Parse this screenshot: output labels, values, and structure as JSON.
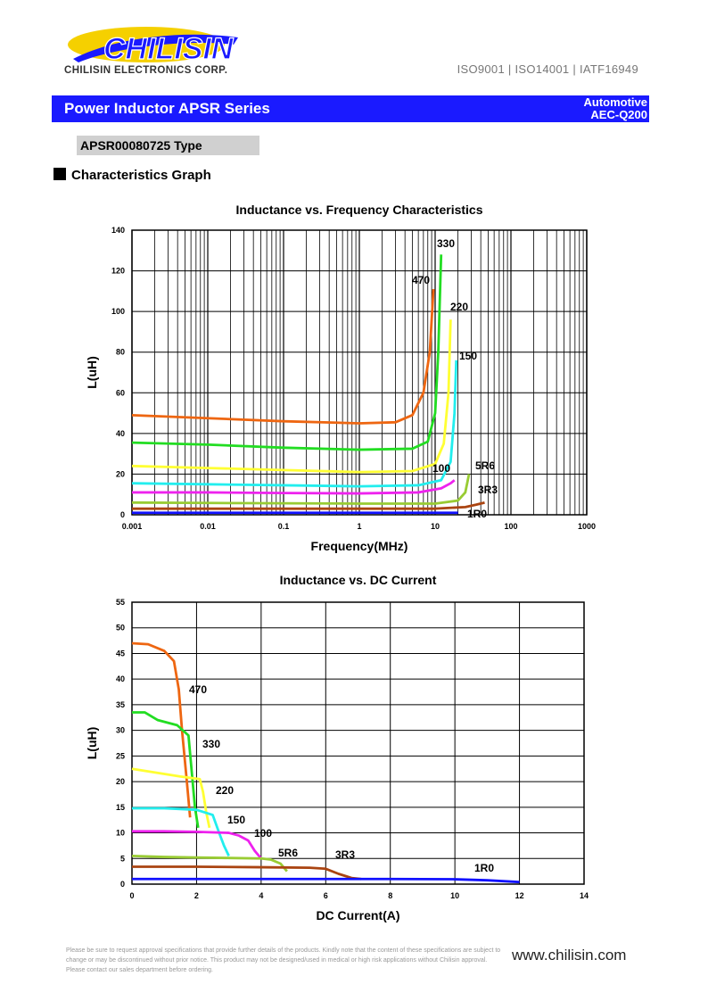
{
  "header": {
    "logo_text": "CHILISIN",
    "company": "CHILISIN ELECTRONICS CORP.",
    "certs": "ISO9001 | ISO14001 | IATF16949"
  },
  "title_bar": {
    "title": "Power Inductor  APSR Series",
    "badge_line1": "Automotive",
    "badge_line2": "AEC-Q200"
  },
  "type_label": "APSR00080725 Type",
  "section_heading": "Characteristics Graph",
  "footer": {
    "note": "Please be sure to request approval specifications that provide further details of the products. Kindly note that the content of these specifications are subject to change or may be discontinued without prior notice. This product may not be designed/used in medical or high risk applications without Chilisin approval. Please contact our sales department before ordering.",
    "website": "www.chilisin.com"
  },
  "colors": {
    "470": "#ee6611",
    "330": "#22dd22",
    "220": "#ffff33",
    "150": "#22eeee",
    "100": "#ee22ee",
    "5R6": "#99cc33",
    "3R3": "#aa4411",
    "1R0": "#1111ff",
    "title_bar": "#1a1aff"
  },
  "chart_data": [
    {
      "type": "line",
      "title": "Inductance  vs. Frequency Characteristics",
      "xlabel": "Frequency(MHz)",
      "ylabel": "L(uH)",
      "xscale": "log",
      "xlim": [
        0.001,
        1000
      ],
      "ylim": [
        0,
        140
      ],
      "x_ticks": [
        "0.001",
        "0.01",
        "0.1",
        "1",
        "10",
        "100",
        "1000"
      ],
      "y_ticks": [
        "0",
        "20",
        "40",
        "60",
        "80",
        "100",
        "120",
        "140"
      ],
      "grid": true,
      "series": [
        {
          "name": "470",
          "points": [
            [
              0.001,
              49
            ],
            [
              0.01,
              47.5
            ],
            [
              0.1,
              46
            ],
            [
              1,
              45
            ],
            [
              3,
              45.5
            ],
            [
              5,
              49
            ],
            [
              7,
              60
            ],
            [
              8.5,
              80
            ],
            [
              9.5,
              111
            ]
          ]
        },
        {
          "name": "330",
          "points": [
            [
              0.001,
              35.5
            ],
            [
              0.01,
              34.5
            ],
            [
              0.1,
              33
            ],
            [
              1,
              32
            ],
            [
              5,
              32.5
            ],
            [
              8,
              36
            ],
            [
              10,
              50
            ],
            [
              11,
              80
            ],
            [
              12,
              128
            ]
          ]
        },
        {
          "name": "220",
          "points": [
            [
              0.001,
              24
            ],
            [
              0.01,
              23
            ],
            [
              0.1,
              22
            ],
            [
              1,
              21
            ],
            [
              5,
              21.5
            ],
            [
              10,
              25
            ],
            [
              13,
              35
            ],
            [
              15,
              60
            ],
            [
              16,
              96
            ]
          ]
        },
        {
          "name": "150",
          "points": [
            [
              0.001,
              15.5
            ],
            [
              0.01,
              15
            ],
            [
              0.1,
              14.5
            ],
            [
              1,
              14
            ],
            [
              6,
              14.5
            ],
            [
              12,
              17
            ],
            [
              16,
              26
            ],
            [
              18,
              50
            ],
            [
              19,
              76
            ]
          ]
        },
        {
          "name": "100",
          "points": [
            [
              0.001,
              11
            ],
            [
              0.01,
              11
            ],
            [
              0.1,
              10.7
            ],
            [
              1,
              10.5
            ],
            [
              6,
              11
            ],
            [
              12,
              13
            ],
            [
              16,
              15.5
            ],
            [
              18,
              17
            ]
          ]
        },
        {
          "name": "5R6",
          "points": [
            [
              0.001,
              6
            ],
            [
              0.01,
              5.8
            ],
            [
              1,
              5.5
            ],
            [
              10,
              5.5
            ],
            [
              20,
              7
            ],
            [
              25,
              11
            ],
            [
              28,
              20
            ]
          ]
        },
        {
          "name": "3R3",
          "points": [
            [
              0.001,
              3
            ],
            [
              0.1,
              3
            ],
            [
              1,
              3
            ],
            [
              10,
              3
            ],
            [
              25,
              3.8
            ],
            [
              35,
              5
            ],
            [
              45,
              6
            ]
          ]
        },
        {
          "name": "1R0",
          "points": [
            [
              0.001,
              1
            ],
            [
              0.1,
              1
            ],
            [
              1,
              1
            ],
            [
              10,
              1
            ],
            [
              20,
              1
            ]
          ]
        }
      ],
      "annotations": [
        "330",
        "470",
        "220",
        "150",
        "100",
        "5R6",
        "3R3",
        "1R0"
      ]
    },
    {
      "type": "line",
      "title": "Inductance vs. DC Current",
      "xlabel": "DC Current(A)",
      "ylabel": "L(uH)",
      "xlim": [
        0,
        14
      ],
      "ylim": [
        0,
        55
      ],
      "x_ticks": [
        "0",
        "2",
        "4",
        "6",
        "8",
        "10",
        "12",
        "14"
      ],
      "y_ticks": [
        "0",
        "5",
        "10",
        "15",
        "20",
        "25",
        "30",
        "35",
        "40",
        "45",
        "50",
        "55"
      ],
      "grid": true,
      "series": [
        {
          "name": "470",
          "points": [
            [
              0,
              47
            ],
            [
              0.5,
              46.8
            ],
            [
              1,
              45.5
            ],
            [
              1.3,
              43.5
            ],
            [
              1.45,
              38
            ],
            [
              1.55,
              30
            ],
            [
              1.7,
              20
            ],
            [
              1.8,
              13
            ]
          ]
        },
        {
          "name": "330",
          "points": [
            [
              0,
              33.5
            ],
            [
              0.4,
              33.5
            ],
            [
              0.8,
              32
            ],
            [
              1.4,
              31
            ],
            [
              1.75,
              29
            ],
            [
              1.85,
              22
            ],
            [
              1.95,
              15
            ],
            [
              2.05,
              11
            ]
          ]
        },
        {
          "name": "220",
          "points": [
            [
              0,
              22.5
            ],
            [
              0.5,
              22
            ],
            [
              1,
              21.5
            ],
            [
              1.5,
              21
            ],
            [
              2.1,
              20.5
            ],
            [
              2.2,
              18
            ],
            [
              2.3,
              14
            ],
            [
              2.4,
              11
            ]
          ]
        },
        {
          "name": "150",
          "points": [
            [
              0,
              14.8
            ],
            [
              1,
              14.8
            ],
            [
              2,
              14.5
            ],
            [
              2.5,
              13.5
            ],
            [
              2.7,
              10
            ],
            [
              2.85,
              7.5
            ],
            [
              3,
              5.5
            ]
          ]
        },
        {
          "name": "100",
          "points": [
            [
              0,
              10.3
            ],
            [
              1,
              10.3
            ],
            [
              2,
              10.2
            ],
            [
              3,
              10
            ],
            [
              3.3,
              9.5
            ],
            [
              3.6,
              8.5
            ],
            [
              3.8,
              6.5
            ],
            [
              4,
              5
            ]
          ]
        },
        {
          "name": "5R6",
          "points": [
            [
              0,
              5.5
            ],
            [
              1,
              5.3
            ],
            [
              2,
              5.2
            ],
            [
              3,
              5.1
            ],
            [
              4,
              5
            ],
            [
              4.3,
              4.8
            ],
            [
              4.6,
              4
            ],
            [
              4.8,
              2.5
            ]
          ]
        },
        {
          "name": "3R3",
          "points": [
            [
              0,
              3.4
            ],
            [
              2,
              3.4
            ],
            [
              4,
              3.3
            ],
            [
              5.5,
              3.2
            ],
            [
              6,
              3
            ],
            [
              6.4,
              2
            ],
            [
              6.8,
              1.2
            ],
            [
              7.1,
              1
            ]
          ]
        },
        {
          "name": "1R0",
          "points": [
            [
              0,
              1
            ],
            [
              4,
              1
            ],
            [
              8,
              1
            ],
            [
              10,
              0.95
            ],
            [
              11,
              0.75
            ],
            [
              12,
              0.4
            ]
          ]
        }
      ],
      "annotations": [
        "470",
        "330",
        "220",
        "150",
        "100",
        "5R6",
        "3R3",
        "1R0"
      ]
    }
  ]
}
